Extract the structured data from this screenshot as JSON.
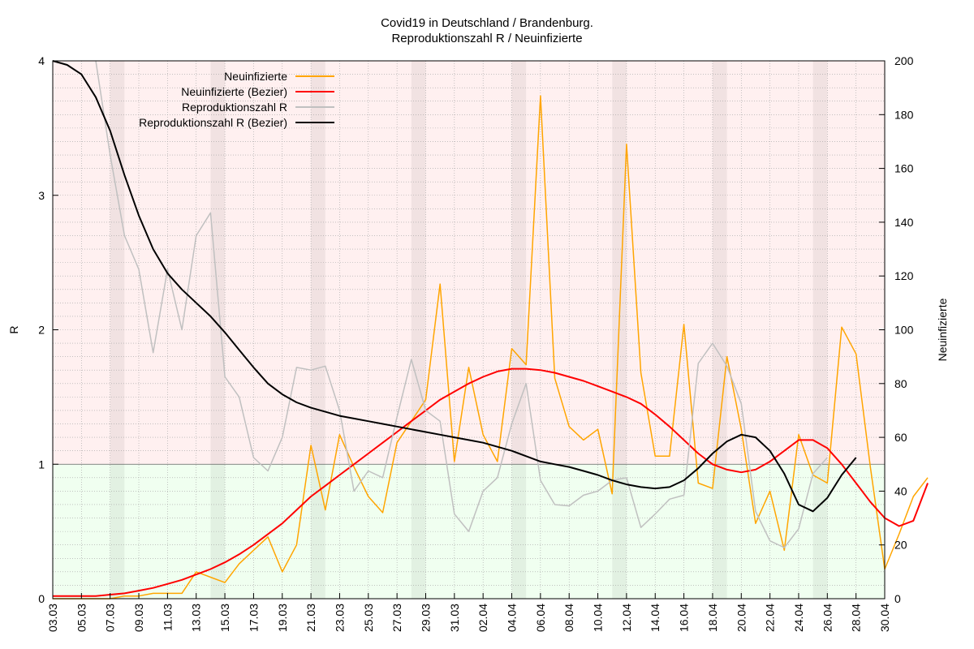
{
  "chart_data": {
    "type": "line",
    "title": "Covid19 in Deutschland / Brandenburg.",
    "subtitle": "Reproduktionszahl R / Neuinfizierte",
    "ylabel_left": "R",
    "ylabel_right": "Neuinfizierte",
    "ylim_left": [
      0,
      4
    ],
    "ylim_right": [
      0,
      200
    ],
    "yticks_left": [
      "0",
      "1",
      "2",
      "3",
      "4"
    ],
    "yticks_right": [
      "0",
      "20",
      "40",
      "60",
      "80",
      "100",
      "120",
      "140",
      "160",
      "180",
      "200"
    ],
    "threshold_r": 1,
    "grid": true,
    "legend_position": "top-left",
    "colors": {
      "neuinfizierte": "#ffa500",
      "neuinfizierte_bezier": "#ff0000",
      "reproduktionszahl": "#c0c0c0",
      "reproduktionszahl_bezier": "#000000",
      "band_above": "#fff0f0",
      "band_below": "#f0fff0"
    },
    "x_labels": [
      "03.03",
      "05.03",
      "07.03",
      "09.03",
      "11.03",
      "13.03",
      "15.03",
      "17.03",
      "19.03",
      "21.03",
      "23.03",
      "25.03",
      "27.03",
      "29.03",
      "31.03",
      "02.04",
      "04.04",
      "06.04",
      "08.04",
      "10.04",
      "12.04",
      "14.04",
      "16.04",
      "18.04",
      "20.04",
      "22.04",
      "24.04",
      "26.04",
      "28.04",
      "30.04"
    ],
    "weekend_bands": [
      [
        "07.03",
        "08.03"
      ],
      [
        "14.03",
        "15.03"
      ],
      [
        "21.03",
        "22.03"
      ],
      [
        "28.03",
        "29.03"
      ],
      [
        "04.04",
        "05.04"
      ],
      [
        "11.04",
        "12.04"
      ],
      [
        "18.04",
        "19.04"
      ],
      [
        "25.04",
        "26.04"
      ]
    ],
    "legend": [
      {
        "key": "neuinfizierte",
        "label": "Neuinfizierte"
      },
      {
        "key": "neuinfizierte_bezier",
        "label": "Neuinfizierte (Bezier)"
      },
      {
        "key": "reproduktionszahl",
        "label": "Reproduktionszahl R"
      },
      {
        "key": "reproduktionszahl_bezier",
        "label": "Reproduktionszahl R (Bezier)"
      }
    ],
    "series": [
      {
        "key": "neuinfizierte",
        "axis": "right",
        "start": "03.03",
        "values": [
          0,
          0,
          0,
          0,
          0,
          1,
          1,
          2,
          2,
          2,
          10,
          8,
          6,
          13,
          18,
          23,
          10,
          20,
          57,
          33,
          61,
          49,
          38,
          32,
          58,
          66,
          74,
          117,
          51,
          86,
          61,
          51,
          93,
          87,
          187,
          82,
          64,
          59,
          63,
          39,
          169,
          84,
          53,
          53,
          102,
          43,
          41,
          90,
          63,
          28,
          40,
          18,
          61,
          46,
          43,
          101,
          91,
          49,
          11,
          24,
          38,
          45
        ]
      },
      {
        "key": "neuinfizierte_bezier",
        "axis": "right",
        "start": "03.03",
        "values": [
          1,
          1,
          1,
          1,
          1.5,
          2,
          3,
          4,
          5.5,
          7,
          9,
          11,
          13.5,
          16.5,
          20,
          24,
          28,
          33,
          38,
          42,
          46,
          50,
          54,
          58,
          62,
          66,
          70,
          74,
          77,
          80,
          82.5,
          84.5,
          85.5,
          85.5,
          85,
          84,
          82.5,
          81,
          79,
          77,
          75,
          72.5,
          68.5,
          64,
          59,
          54,
          50,
          48,
          47,
          48,
          51,
          55,
          59,
          59,
          56,
          50,
          43,
          36,
          30,
          27,
          29,
          43
        ]
      },
      {
        "key": "reproduktionszahl",
        "axis": "left",
        "start": "06.03",
        "values": [
          4.05,
          3.3,
          2.7,
          2.45,
          1.83,
          2.45,
          2.0,
          2.7,
          2.87,
          1.65,
          1.5,
          1.05,
          0.95,
          1.2,
          1.72,
          1.7,
          1.73,
          1.4,
          0.8,
          0.95,
          0.9,
          1.35,
          1.78,
          1.4,
          1.32,
          0.63,
          0.5,
          0.8,
          0.9,
          1.3,
          1.6,
          0.88,
          0.7,
          0.69,
          0.77,
          0.8,
          0.88,
          0.9,
          0.53,
          0.63,
          0.74,
          0.77,
          1.75,
          1.9,
          1.73,
          1.45,
          0.65,
          0.43,
          0.38,
          0.52,
          0.93,
          1.05
        ]
      },
      {
        "key": "reproduktionszahl_bezier",
        "axis": "left",
        "start": "03.03",
        "values": [
          4.0,
          3.97,
          3.9,
          3.73,
          3.48,
          3.15,
          2.85,
          2.6,
          2.42,
          2.3,
          2.2,
          2.1,
          1.98,
          1.85,
          1.72,
          1.6,
          1.52,
          1.46,
          1.42,
          1.39,
          1.36,
          1.34,
          1.32,
          1.3,
          1.28,
          1.26,
          1.24,
          1.22,
          1.2,
          1.18,
          1.16,
          1.13,
          1.1,
          1.06,
          1.02,
          1.0,
          0.98,
          0.95,
          0.92,
          0.88,
          0.85,
          0.83,
          0.82,
          0.83,
          0.88,
          0.97,
          1.08,
          1.17,
          1.22,
          1.2,
          1.1,
          0.93,
          0.7,
          0.65,
          0.75,
          0.92,
          1.05
        ]
      }
    ]
  }
}
